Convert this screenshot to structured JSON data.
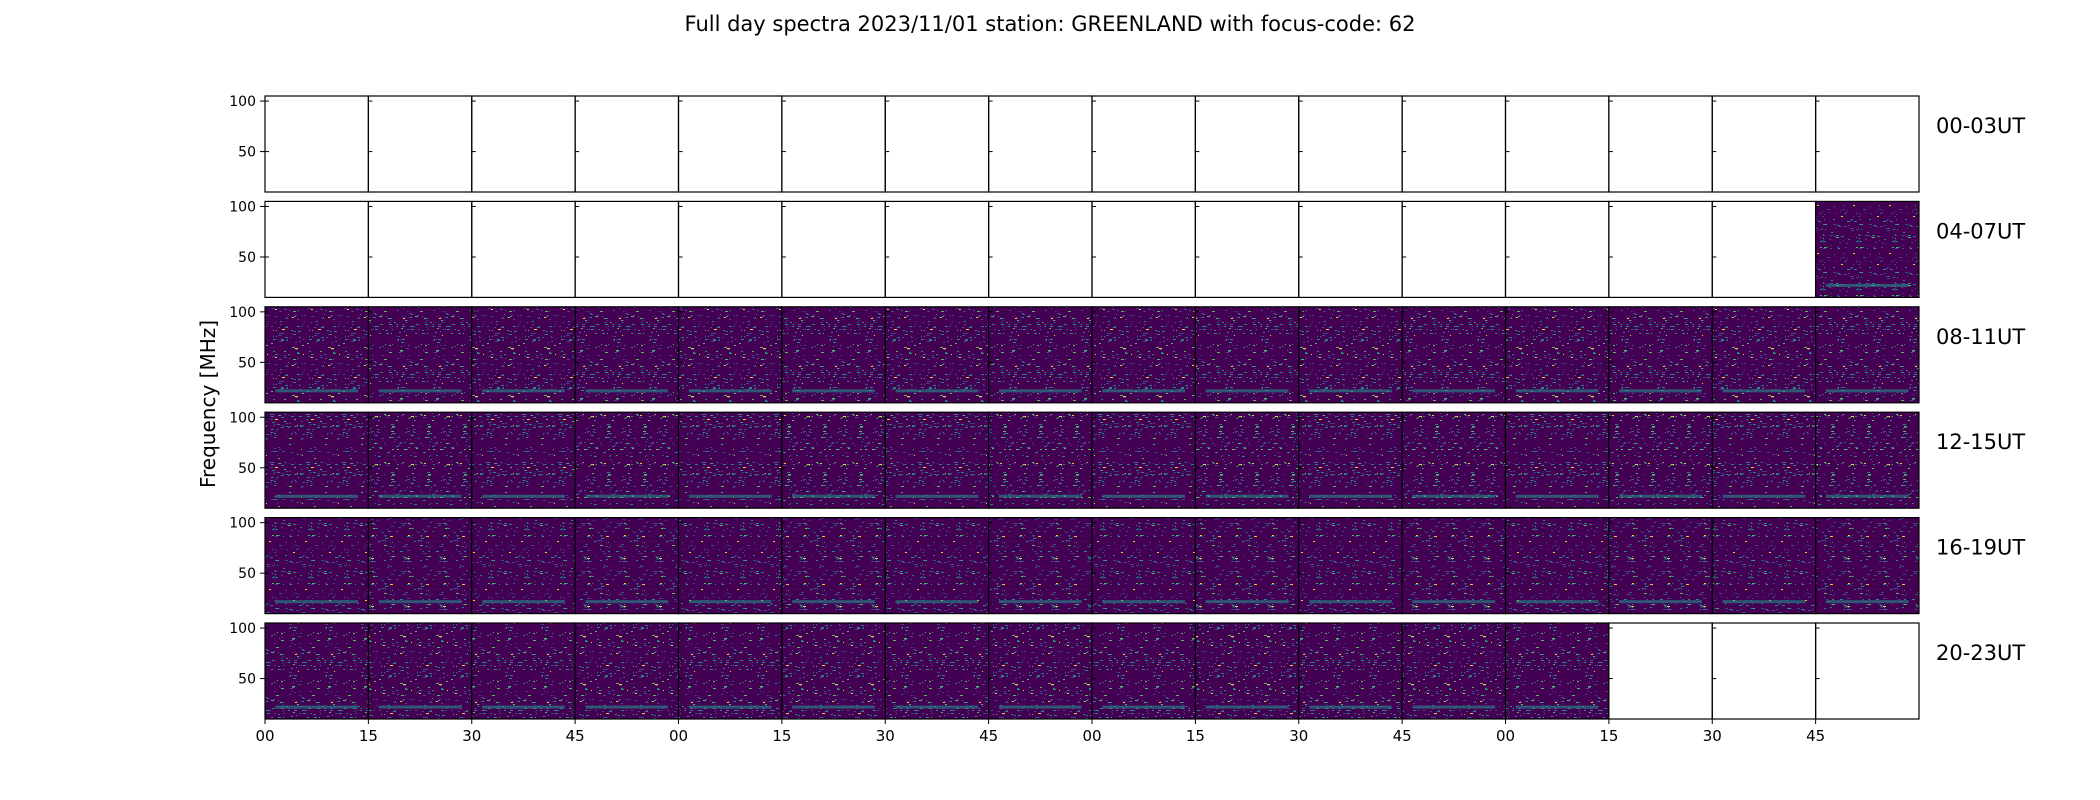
{
  "chart_data": {
    "type": "heatmap",
    "title": "Full day spectra 2023/11/01 station: GREENLAND with focus-code: 62",
    "ylabel": "Frequency [MHz]",
    "xlabel": "",
    "y_ticks": [
      50,
      100
    ],
    "x_ticks": [
      "00",
      "15",
      "30",
      "45",
      "00",
      "15",
      "30",
      "45",
      "00",
      "15",
      "30",
      "45",
      "00",
      "15",
      "30",
      "45"
    ],
    "colormap": [
      "#440154",
      "#3b528b",
      "#21918c",
      "#5ec962",
      "#fde725"
    ],
    "rows": [
      {
        "label": "00-03UT",
        "panels": [
          0,
          0,
          0,
          0,
          0,
          0,
          0,
          0,
          0,
          0,
          0,
          0,
          0,
          0,
          0,
          0
        ]
      },
      {
        "label": "04-07UT",
        "panels": [
          0,
          0,
          0,
          0,
          0,
          0,
          0,
          0,
          0,
          0,
          0,
          0,
          0,
          0,
          0,
          1
        ]
      },
      {
        "label": "08-11UT",
        "panels": [
          1,
          1,
          1,
          1,
          1,
          1,
          1,
          1,
          1,
          1,
          1,
          1,
          1,
          1,
          1,
          1
        ]
      },
      {
        "label": "12-15UT",
        "panels": [
          1,
          1,
          1,
          1,
          1,
          1,
          1,
          1,
          1,
          1,
          1,
          1,
          1,
          1,
          1,
          1
        ]
      },
      {
        "label": "16-19UT",
        "panels": [
          1,
          1,
          1,
          1,
          1,
          1,
          1,
          1,
          1,
          1,
          1,
          1,
          1,
          1,
          1,
          1
        ]
      },
      {
        "label": "20-23UT",
        "panels": [
          1,
          1,
          1,
          1,
          1,
          1,
          1,
          1,
          1,
          1,
          1,
          1,
          1,
          0,
          0,
          0
        ]
      }
    ]
  }
}
